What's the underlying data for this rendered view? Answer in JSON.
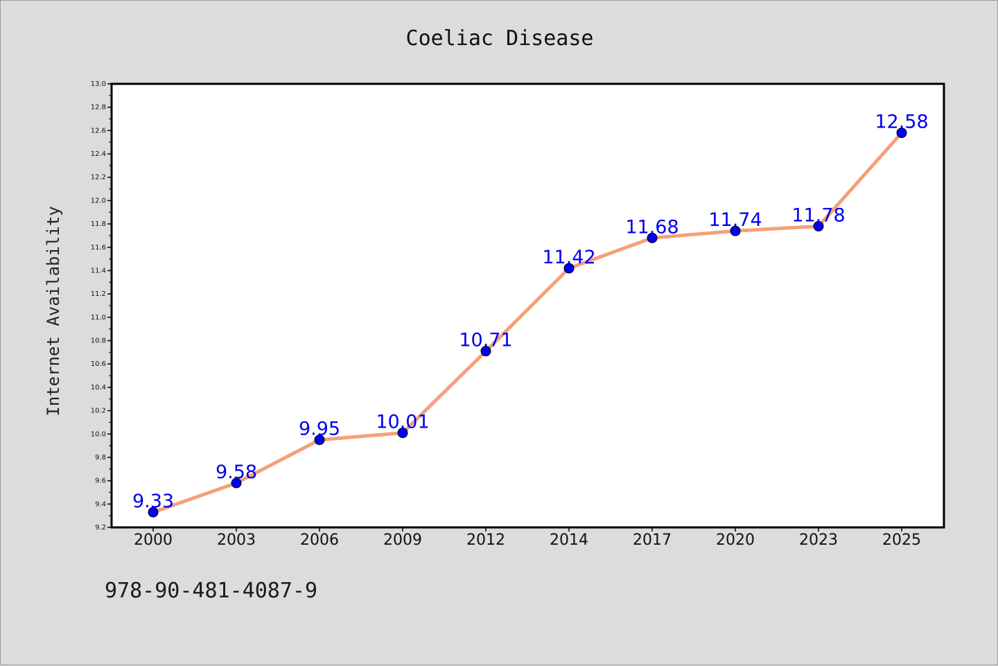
{
  "chart_data": {
    "type": "line",
    "title": "Coeliac Disease",
    "xlabel": "",
    "ylabel": "Internet Availability",
    "categories": [
      "2000",
      "2003",
      "2006",
      "2009",
      "2012",
      "2014",
      "2017",
      "2020",
      "2023",
      "2025"
    ],
    "series": [
      {
        "values": [
          9.33,
          9.58,
          9.95,
          10.01,
          10.71,
          11.42,
          11.68,
          11.74,
          11.78,
          12.58
        ],
        "labels": [
          "9.33",
          "9.58",
          "9.95",
          "10.01",
          "10.71",
          "11.42",
          "11.68",
          "11.74",
          "11.78",
          "12.58"
        ]
      }
    ],
    "ylim": [
      9.2,
      13.0
    ],
    "yticks": [
      "9.2",
      "9.4",
      "9.6",
      "9.8",
      "10.0",
      "10.2",
      "10.4",
      "10.6",
      "10.8",
      "11.0",
      "11.2",
      "11.4",
      "11.6",
      "11.8",
      "12.0",
      "12.2",
      "12.4",
      "12.6",
      "12.8",
      "13.0"
    ],
    "grid": false,
    "legend": "none",
    "colors": {
      "line": "#f4a07a",
      "marker": "#0000ee",
      "data_label": "#0000ee",
      "background": "#dcdcdc",
      "plot_background": "#ffffff"
    }
  },
  "footer": {
    "isbn": "978-90-481-4087-9"
  }
}
